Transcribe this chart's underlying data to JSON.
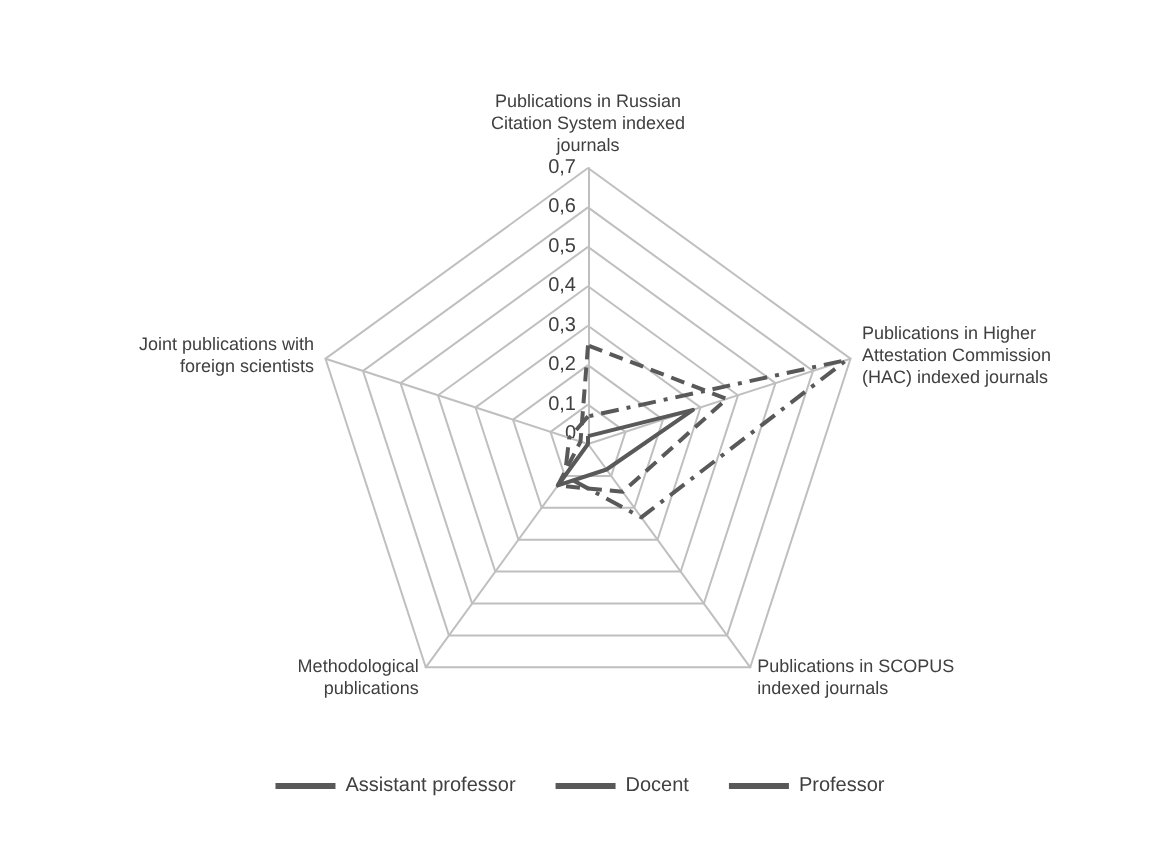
{
  "chart_data": {
    "type": "radar",
    "categories": [
      "Publications in Russian Citation System indexed journals",
      "Publications in Higher Attestation Commission (HAC) indexed journals",
      "Publications in SCOPUS indexed journals",
      "Methodological publications",
      "Joint publications with foreign scientists"
    ],
    "series": [
      {
        "name": "Assistant professor",
        "color": "#595959",
        "line_style": "solid",
        "values": [
          0.02,
          0.28,
          0.08,
          0.13,
          0
        ]
      },
      {
        "name": "Docent",
        "color": "#595959",
        "line_style": "dashed",
        "values": [
          0.25,
          0.37,
          0.15,
          0.13,
          0.02
        ]
      },
      {
        "name": "Professor",
        "color": "#595959",
        "line_style": "dotted",
        "values": [
          0.07,
          0.69,
          0.23,
          0.1,
          0.05
        ]
      }
    ],
    "ylim": [
      0,
      0.7
    ],
    "yticks": [
      0,
      {
        "value": 0.1,
        "label": "0,1"
      },
      {
        "value": 0.2,
        "label": "0,2"
      },
      {
        "value": 0.3,
        "label": "0,3"
      },
      {
        "value": 0.4,
        "label": "0,4"
      },
      {
        "value": 0.5,
        "label": "0,5"
      },
      {
        "value": 0.6,
        "label": "0,6"
      },
      {
        "value": 0.7,
        "label": "0,7"
      }
    ],
    "grid": true,
    "legend": "bottom",
    "marker": "none"
  }
}
